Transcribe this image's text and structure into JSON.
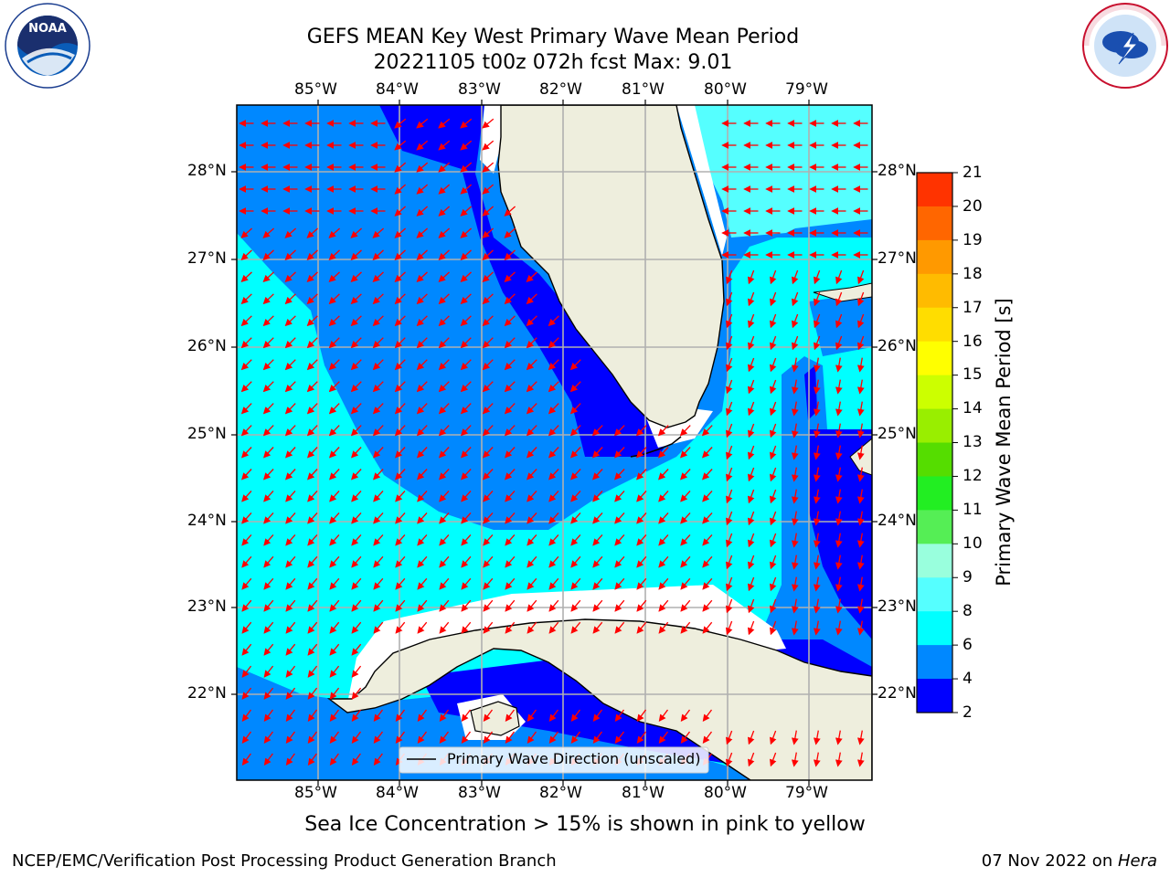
{
  "title": {
    "line1": "GEFS MEAN Key West Primary Wave Mean Period",
    "line2": "20221105 t00z 072h fcst   Max: 9.01"
  },
  "logos": {
    "left": "NOAA",
    "left_ring": "NATIONAL OCEANIC AND ATMOSPHERIC ADMINISTRATION · U.S. DEPARTMENT OF COMMERCE",
    "right_ring": "NATIONAL WEATHER SERVICE"
  },
  "axes": {
    "lon_labels": [
      "85°W",
      "84°W",
      "83°W",
      "82°W",
      "81°W",
      "80°W",
      "79°W"
    ],
    "lat_labels": [
      "28°N",
      "27°N",
      "26°N",
      "25°N",
      "24°N",
      "23°N",
      "22°N"
    ]
  },
  "colorbar": {
    "label": "Primary Wave Mean Period [s]",
    "ticks": [
      "21",
      "20",
      "19",
      "18",
      "17",
      "16",
      "15",
      "14",
      "13",
      "12",
      "11",
      "10",
      "9",
      "8",
      "6",
      "4",
      "2"
    ],
    "colors": [
      "#ff0000",
      "#ff3300",
      "#ff6600",
      "#ff9900",
      "#ffbb00",
      "#ffdd00",
      "#ffff00",
      "#ccff00",
      "#99ee00",
      "#55dd00",
      "#22ee22",
      "#55ee55",
      "#99ffdd",
      "#55ffff",
      "#00ffff",
      "#0088ff",
      "#0000ff"
    ]
  },
  "legend": {
    "label": "Primary Wave Direction (unscaled)"
  },
  "chart_data": {
    "type": "heatmap",
    "variable": "Primary Wave Mean Period",
    "units": "s",
    "max": 9.01,
    "color_levels": [
      2,
      4,
      6,
      8,
      9,
      10,
      11,
      12,
      13,
      14,
      15,
      16,
      17,
      18,
      19,
      20,
      21
    ],
    "lon_range": [
      -86,
      -78.3
    ],
    "lat_range": [
      21.0,
      28.8
    ]
  },
  "caption": "Sea Ice Concentration > 15% is shown in pink to yellow",
  "footer": {
    "left": "NCEP/EMC/Verification Post Processing Product Generation Branch",
    "right_date": "07 Nov 2022 on ",
    "right_host": "Hera"
  }
}
